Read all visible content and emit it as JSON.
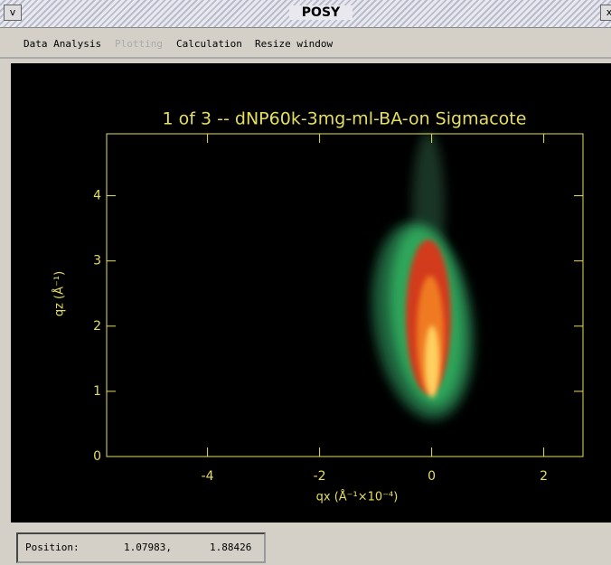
{
  "window": {
    "title": "POSY"
  },
  "menu": {
    "items": [
      "Data Analysis",
      "Plotting",
      "Calculation",
      "Resize window"
    ]
  },
  "plot": {
    "title": "1 of   3 -- dNP60k-3mg-ml-BA-on Sigmacote",
    "x_label": "qx (Å⁻¹×10⁻⁴)",
    "y_label": "qz (Å⁻¹)",
    "xlim": [
      -5.8,
      2.7
    ],
    "ylim": [
      0,
      4.95
    ],
    "xticks": [
      -4,
      -2,
      0,
      2
    ],
    "yticks": [
      0,
      1,
      2,
      3,
      4
    ],
    "axis_color": "#e6df5e"
  },
  "status": {
    "label": "Position:",
    "x": "1.07983,",
    "y": "1.88426"
  }
}
